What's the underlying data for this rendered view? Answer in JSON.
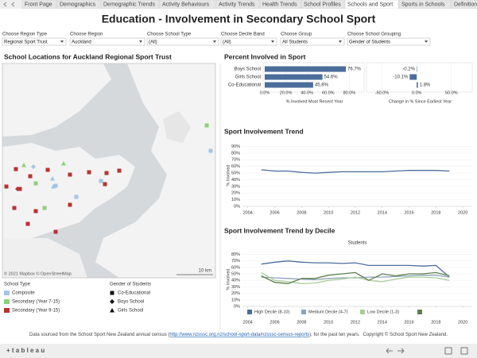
{
  "tabs": [
    "Front Page",
    "Demographics",
    "Demographic Trends",
    "Activity Behaviours",
    "Activity Trends",
    "Health Trends",
    "School Profiles",
    "Schools and Sport",
    "Sports in Schools",
    "Definitions"
  ],
  "header": {
    "title": "Education - Involvement in Secondary School Sport"
  },
  "filters": [
    {
      "label": "Choose Region Type",
      "value": "Regional Sport Trust"
    },
    {
      "label": "Choose Region",
      "value": "Auckland"
    },
    {
      "label": "Choose School Type",
      "value": "(All)"
    },
    {
      "label": "Choose Decile Band",
      "value": "(All)"
    },
    {
      "label": "Choose Group",
      "value": "All Students"
    },
    {
      "label": "Choose School Grouping",
      "value": "Gender of Students"
    }
  ],
  "map": {
    "title": "School Locations for Auckland Regional Sport Trust",
    "attribution": "© 2021 Mapbox © OpenStreetMap",
    "scale": "10 km",
    "school_type": {
      "title": "School Type",
      "items": [
        {
          "name": "Composite",
          "color": "#a3c6e6"
        },
        {
          "name": "Secondary (Year 7-15)",
          "color": "#8fcf7c"
        },
        {
          "name": "Secondary (Year 9-15)",
          "color": "#b83232"
        }
      ]
    },
    "gender": {
      "title": "Gender of Students",
      "items": [
        {
          "name": "Co-Educational",
          "shape": "square"
        },
        {
          "name": "Boys School",
          "shape": "diamond"
        },
        {
          "name": "Girls School",
          "shape": "triangle"
        }
      ]
    }
  },
  "chart_data": [
    {
      "type": "hbar",
      "title": "Percent Involved in Sport",
      "categories": [
        "Boys School",
        "Girls School",
        "Co-Educational"
      ],
      "values": [
        76.7,
        54.6,
        45.8
      ],
      "value_labels": [
        "76.7%",
        "54.6%",
        "45.8%"
      ],
      "color": "#4b6d9b",
      "xlim": [
        0,
        94
      ],
      "xticks": [
        {
          "value": 0,
          "label": "0.0%"
        },
        {
          "value": 20,
          "label": "20.0%"
        },
        {
          "value": 40,
          "label": "40.0%"
        },
        {
          "value": 60,
          "label": "60.0%"
        },
        {
          "value": 80,
          "label": "80.0%"
        }
      ],
      "x_label": "% Involved Most Recent Year"
    },
    {
      "type": "hbar",
      "values": [
        -0.2,
        -10.1,
        1.8
      ],
      "value_labels": [
        "-0.2%",
        "-10.1%",
        "1.8%"
      ],
      "color": "#4b6d9b",
      "xlim": [
        -70,
        80
      ],
      "xticks": [
        {
          "value": -50,
          "label": "-50.0%"
        },
        {
          "value": 0,
          "label": "0.0%"
        },
        {
          "value": 50,
          "label": "50.0%"
        }
      ],
      "x_label": "Change in % Since Earliest Year"
    },
    {
      "type": "line",
      "title": "Sport Involvement Trend",
      "y_label": "% Involved",
      "grid": true,
      "color": "#4b6d9b",
      "x": [
        2005,
        2006,
        2007,
        2008,
        2009,
        2010,
        2011,
        2012,
        2013,
        2014,
        2015,
        2016,
        2017,
        2018,
        2019
      ],
      "values": [
        55,
        53,
        53,
        51,
        50,
        51,
        52,
        52,
        52,
        52,
        53,
        54,
        54,
        54,
        53
      ],
      "xlim": [
        2003.6,
        2020.7
      ],
      "xticks": [
        2004,
        2006,
        2008,
        2010,
        2012,
        2014,
        2016,
        2018,
        2020
      ],
      "ylim": [
        0,
        93
      ],
      "yticks": [
        {
          "value": 0,
          "label": "0%"
        },
        {
          "value": 10,
          "label": "10%"
        },
        {
          "value": 20,
          "label": "20%"
        },
        {
          "value": 30,
          "label": "30%"
        },
        {
          "value": 40,
          "label": "40%"
        },
        {
          "value": 50,
          "label": "50%"
        },
        {
          "value": 60,
          "label": "60%"
        },
        {
          "value": 70,
          "label": "70%"
        },
        {
          "value": 80,
          "label": "80%"
        },
        {
          "value": 90,
          "label": "90%"
        }
      ]
    },
    {
      "type": "line",
      "title": "Sport Involvement Trend by Decile",
      "subtitle": "Students",
      "y_label": "% Involved",
      "grid": true,
      "x": [
        2005,
        2006,
        2007,
        2008,
        2009,
        2010,
        2011,
        2012,
        2013,
        2014,
        2015,
        2016,
        2017,
        2018,
        2019
      ],
      "series": [
        {
          "name": "High Decile (8-10)",
          "color": "#4b6d9b",
          "values": [
            65,
            68,
            70,
            68,
            67,
            67,
            66,
            67,
            63,
            63,
            63,
            63,
            62,
            63,
            45
          ]
        },
        {
          "name": "Medium Decile (4-7)",
          "color": "#8ea3bb",
          "values": [
            45,
            44,
            43,
            42,
            41,
            43,
            44,
            44,
            45,
            45,
            46,
            47,
            48,
            48,
            45
          ]
        },
        {
          "name": "Low Decile (1-3)",
          "color": "#a9cd98",
          "values": [
            52,
            40,
            38,
            35,
            36,
            40,
            42,
            45,
            40,
            38,
            42,
            45,
            45,
            44,
            40
          ]
        },
        {
          "color": "#5d7f4d",
          "values": [
            47,
            37,
            35,
            43,
            43,
            48,
            50,
            52,
            40,
            50,
            47,
            50,
            50,
            52,
            47
          ]
        }
      ],
      "xlim": [
        2003.6,
        2020.7
      ],
      "xticks": [
        2004,
        2006,
        2008,
        2010,
        2012,
        2014,
        2016,
        2018,
        2020
      ],
      "ylim": [
        0,
        83
      ],
      "yticks": [
        {
          "value": 0,
          "label": "0%"
        },
        {
          "value": 10,
          "label": "10%"
        },
        {
          "value": 20,
          "label": "20%"
        },
        {
          "value": 30,
          "label": "30%"
        },
        {
          "value": 40,
          "label": "40%"
        },
        {
          "value": 50,
          "label": "50%"
        },
        {
          "value": 60,
          "label": "60%"
        },
        {
          "value": 70,
          "label": "70%"
        },
        {
          "value": 80,
          "label": "80%"
        }
      ]
    }
  ],
  "footer": {
    "source": "Data sourced from the School Sport New Zealand annual census (",
    "link": "http://www.nzsssc.org.nz/school-sport-data/nzsssc-census-reports",
    "source_end": "), for the past ten years.",
    "copyright": "Copyright © School Sport New Zealand."
  },
  "toolbar": {
    "logo": "+ t a b l e a u"
  }
}
